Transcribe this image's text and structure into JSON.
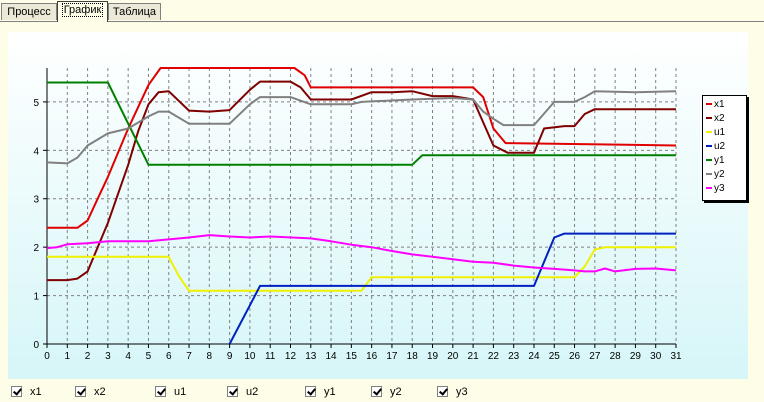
{
  "tabs": [
    {
      "label": "Процесс",
      "active": false
    },
    {
      "label": "График",
      "active": true
    },
    {
      "label": "Таблица",
      "active": false
    }
  ],
  "chart_data": {
    "type": "line",
    "title": "",
    "xlabel": "",
    "ylabel": "",
    "xlim": [
      0,
      31
    ],
    "ylim": [
      0,
      5.7
    ],
    "x_ticks": [
      0,
      1,
      2,
      3,
      4,
      5,
      6,
      7,
      8,
      9,
      10,
      11,
      12,
      13,
      14,
      15,
      16,
      17,
      18,
      19,
      20,
      21,
      22,
      23,
      24,
      25,
      26,
      27,
      28,
      29,
      30,
      31
    ],
    "y_ticks": [
      0,
      1,
      2,
      3,
      4,
      5
    ],
    "grid": true,
    "legend": "right",
    "series": [
      {
        "name": "x1",
        "color": "#e00000",
        "points": [
          [
            0,
            2.4
          ],
          [
            1.5,
            2.4
          ],
          [
            2,
            2.55
          ],
          [
            2.5,
            3.0
          ],
          [
            3,
            3.45
          ],
          [
            4,
            4.45
          ],
          [
            5,
            5.35
          ],
          [
            5.6,
            5.7
          ],
          [
            12.2,
            5.7
          ],
          [
            12.7,
            5.55
          ],
          [
            13,
            5.3
          ],
          [
            21,
            5.3
          ],
          [
            21.5,
            5.1
          ],
          [
            22,
            4.45
          ],
          [
            22.6,
            4.15
          ],
          [
            31,
            4.1
          ]
        ]
      },
      {
        "name": "x2",
        "color": "#800000",
        "points": [
          [
            0,
            1.32
          ],
          [
            1,
            1.32
          ],
          [
            1.5,
            1.35
          ],
          [
            2,
            1.5
          ],
          [
            2.5,
            2.0
          ],
          [
            3,
            2.5
          ],
          [
            4,
            3.7
          ],
          [
            4.5,
            4.4
          ],
          [
            5,
            4.95
          ],
          [
            5.5,
            5.2
          ],
          [
            6,
            5.22
          ],
          [
            7,
            4.82
          ],
          [
            8,
            4.8
          ],
          [
            9,
            4.83
          ],
          [
            10,
            5.25
          ],
          [
            10.5,
            5.42
          ],
          [
            12,
            5.42
          ],
          [
            12.5,
            5.3
          ],
          [
            13,
            5.05
          ],
          [
            15,
            5.05
          ],
          [
            16,
            5.2
          ],
          [
            17,
            5.2
          ],
          [
            18,
            5.22
          ],
          [
            19,
            5.12
          ],
          [
            20,
            5.12
          ],
          [
            21,
            5.05
          ],
          [
            22,
            4.1
          ],
          [
            22.7,
            3.95
          ],
          [
            24,
            3.95
          ],
          [
            24.5,
            4.45
          ],
          [
            25.5,
            4.5
          ],
          [
            26,
            4.5
          ],
          [
            26.5,
            4.75
          ],
          [
            27,
            4.85
          ],
          [
            31,
            4.85
          ]
        ]
      },
      {
        "name": "u1",
        "color": "#f0f000",
        "points": [
          [
            0,
            1.8
          ],
          [
            6,
            1.8
          ],
          [
            6.5,
            1.4
          ],
          [
            7,
            1.1
          ],
          [
            15,
            1.1
          ],
          [
            15.5,
            1.1
          ],
          [
            16,
            1.38
          ],
          [
            26,
            1.38
          ],
          [
            26.5,
            1.6
          ],
          [
            27,
            1.95
          ],
          [
            27.5,
            2.0
          ],
          [
            31,
            2.0
          ]
        ]
      },
      {
        "name": "u2",
        "color": "#0020c0",
        "points": [
          [
            9,
            0
          ],
          [
            10,
            0.8
          ],
          [
            10.5,
            1.2
          ],
          [
            24,
            1.2
          ],
          [
            25,
            2.2
          ],
          [
            25.5,
            2.28
          ],
          [
            31,
            2.28
          ]
        ]
      },
      {
        "name": "y1",
        "color": "#008000",
        "points": [
          [
            0,
            5.4
          ],
          [
            3,
            5.4
          ],
          [
            5,
            3.7
          ],
          [
            18,
            3.7
          ],
          [
            18.5,
            3.9
          ],
          [
            31,
            3.9
          ]
        ]
      },
      {
        "name": "y2",
        "color": "#808080",
        "points": [
          [
            0,
            3.75
          ],
          [
            1,
            3.73
          ],
          [
            1.5,
            3.85
          ],
          [
            2,
            4.1
          ],
          [
            3,
            4.35
          ],
          [
            4,
            4.45
          ],
          [
            5,
            4.7
          ],
          [
            5.5,
            4.8
          ],
          [
            6,
            4.8
          ],
          [
            7,
            4.55
          ],
          [
            9,
            4.55
          ],
          [
            10,
            4.95
          ],
          [
            10.5,
            5.1
          ],
          [
            12,
            5.1
          ],
          [
            13,
            4.95
          ],
          [
            15,
            4.95
          ],
          [
            15.5,
            5.0
          ],
          [
            18,
            5.05
          ],
          [
            20,
            5.08
          ],
          [
            21,
            5.05
          ],
          [
            21.5,
            4.8
          ],
          [
            22,
            4.65
          ],
          [
            22.5,
            4.52
          ],
          [
            24,
            4.52
          ],
          [
            25,
            5.0
          ],
          [
            26,
            5.0
          ],
          [
            26.5,
            5.1
          ],
          [
            27,
            5.22
          ],
          [
            29,
            5.2
          ],
          [
            31,
            5.22
          ]
        ]
      },
      {
        "name": "y3",
        "color": "#ff00ff",
        "points": [
          [
            0,
            1.98
          ],
          [
            0.5,
            2.0
          ],
          [
            1,
            2.06
          ],
          [
            2,
            2.08
          ],
          [
            3,
            2.12
          ],
          [
            5,
            2.12
          ],
          [
            6,
            2.16
          ],
          [
            7,
            2.2
          ],
          [
            8,
            2.25
          ],
          [
            9,
            2.22
          ],
          [
            10,
            2.2
          ],
          [
            11,
            2.22
          ],
          [
            13,
            2.18
          ],
          [
            14,
            2.12
          ],
          [
            15,
            2.05
          ],
          [
            16,
            2.0
          ],
          [
            17,
            1.92
          ],
          [
            18,
            1.85
          ],
          [
            19,
            1.8
          ],
          [
            20,
            1.75
          ],
          [
            21,
            1.7
          ],
          [
            22,
            1.68
          ],
          [
            23,
            1.62
          ],
          [
            24,
            1.58
          ],
          [
            25,
            1.55
          ],
          [
            26,
            1.52
          ],
          [
            26.5,
            1.5
          ],
          [
            27,
            1.5
          ],
          [
            27.5,
            1.56
          ],
          [
            28,
            1.5
          ],
          [
            29,
            1.55
          ],
          [
            30,
            1.56
          ],
          [
            31,
            1.52
          ]
        ]
      }
    ]
  },
  "checkboxes": [
    {
      "label": "x1",
      "checked": true
    },
    {
      "label": "x2",
      "checked": true
    },
    {
      "label": "u1",
      "checked": true
    },
    {
      "label": "u2",
      "checked": true
    },
    {
      "label": "y1",
      "checked": true
    },
    {
      "label": "y2",
      "checked": true
    },
    {
      "label": "y3",
      "checked": true
    }
  ]
}
